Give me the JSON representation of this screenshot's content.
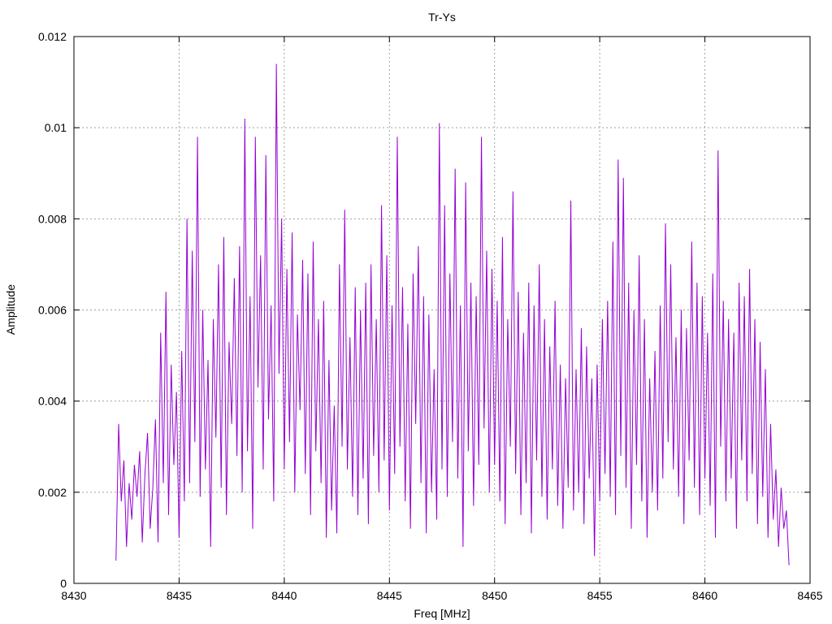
{
  "chart_data": {
    "type": "line",
    "title": "Tr-Ys",
    "xlabel": "Freq [MHz]",
    "ylabel": "Amplitude",
    "xlim": [
      8430,
      8465
    ],
    "ylim": [
      0,
      0.012
    ],
    "xticks": [
      "8430",
      "8435",
      "8440",
      "8445",
      "8450",
      "8455",
      "8460",
      "8465"
    ],
    "yticks": [
      "0",
      "0.002",
      "0.004",
      "0.006",
      "0.008",
      "0.01",
      "0.012"
    ],
    "grid": true,
    "series_color": "#9400d3",
    "series": [
      {
        "x_start": 8432.0,
        "x_step": 0.125,
        "values": [
          0.0005,
          0.0035,
          0.0018,
          0.0027,
          0.0008,
          0.0022,
          0.0014,
          0.0026,
          0.0019,
          0.0029,
          0.0009,
          0.0024,
          0.0033,
          0.0012,
          0.0021,
          0.0036,
          0.0009,
          0.0055,
          0.0022,
          0.0064,
          0.0015,
          0.0048,
          0.0026,
          0.0042,
          0.001,
          0.0051,
          0.0018,
          0.008,
          0.0022,
          0.0073,
          0.0031,
          0.0098,
          0.0019,
          0.006,
          0.0025,
          0.0049,
          0.0008,
          0.0058,
          0.0032,
          0.007,
          0.0021,
          0.0076,
          0.0015,
          0.0053,
          0.0035,
          0.0067,
          0.0028,
          0.0074,
          0.002,
          0.0102,
          0.0029,
          0.0063,
          0.0012,
          0.0098,
          0.0043,
          0.0072,
          0.0025,
          0.0094,
          0.0036,
          0.0061,
          0.0018,
          0.0114,
          0.0046,
          0.008,
          0.0025,
          0.0069,
          0.0031,
          0.0077,
          0.002,
          0.0059,
          0.0038,
          0.0071,
          0.0024,
          0.0068,
          0.0015,
          0.0075,
          0.0029,
          0.0058,
          0.0022,
          0.0062,
          0.001,
          0.0049,
          0.0016,
          0.0039,
          0.0011,
          0.007,
          0.003,
          0.0082,
          0.0025,
          0.0054,
          0.0019,
          0.0065,
          0.0015,
          0.006,
          0.0023,
          0.0066,
          0.0013,
          0.007,
          0.0028,
          0.0058,
          0.002,
          0.0083,
          0.0027,
          0.0072,
          0.0016,
          0.0061,
          0.0024,
          0.0098,
          0.003,
          0.0065,
          0.0018,
          0.0057,
          0.0012,
          0.0068,
          0.0035,
          0.0074,
          0.0022,
          0.0063,
          0.0011,
          0.0059,
          0.002,
          0.0047,
          0.0014,
          0.0101,
          0.0025,
          0.0083,
          0.0019,
          0.0068,
          0.0031,
          0.0091,
          0.0023,
          0.0061,
          0.0008,
          0.0088,
          0.0029,
          0.0066,
          0.0017,
          0.0063,
          0.0026,
          0.0098,
          0.0034,
          0.0073,
          0.002,
          0.0069,
          0.0026,
          0.0062,
          0.0018,
          0.0076,
          0.0013,
          0.0058,
          0.003,
          0.0086,
          0.0024,
          0.0064,
          0.0015,
          0.0055,
          0.0022,
          0.0066,
          0.0011,
          0.0061,
          0.0027,
          0.007,
          0.0019,
          0.0058,
          0.0014,
          0.0052,
          0.0025,
          0.0062,
          0.0017,
          0.0048,
          0.0012,
          0.0045,
          0.0021,
          0.0084,
          0.0016,
          0.0047,
          0.002,
          0.0056,
          0.0013,
          0.0052,
          0.0023,
          0.0045,
          0.0006,
          0.0048,
          0.0018,
          0.0058,
          0.0024,
          0.0062,
          0.0019,
          0.0075,
          0.0015,
          0.0093,
          0.0028,
          0.0089,
          0.0021,
          0.0066,
          0.0012,
          0.006,
          0.0026,
          0.0072,
          0.0018,
          0.0058,
          0.001,
          0.0045,
          0.002,
          0.0051,
          0.0016,
          0.0061,
          0.0023,
          0.0079,
          0.0031,
          0.007,
          0.0025,
          0.0054,
          0.0019,
          0.006,
          0.0013,
          0.0056,
          0.0027,
          0.0075,
          0.0021,
          0.0066,
          0.0015,
          0.0063,
          0.0023,
          0.0055,
          0.0017,
          0.0068,
          0.001,
          0.0095,
          0.003,
          0.0062,
          0.0018,
          0.0058,
          0.0023,
          0.0055,
          0.0012,
          0.0066,
          0.0027,
          0.0063,
          0.0018,
          0.0069,
          0.0024,
          0.0058,
          0.0013,
          0.0053,
          0.0019,
          0.0047,
          0.001,
          0.0035,
          0.0014,
          0.0025,
          0.0008,
          0.0021,
          0.0012,
          0.0016,
          0.0004
        ]
      }
    ]
  }
}
